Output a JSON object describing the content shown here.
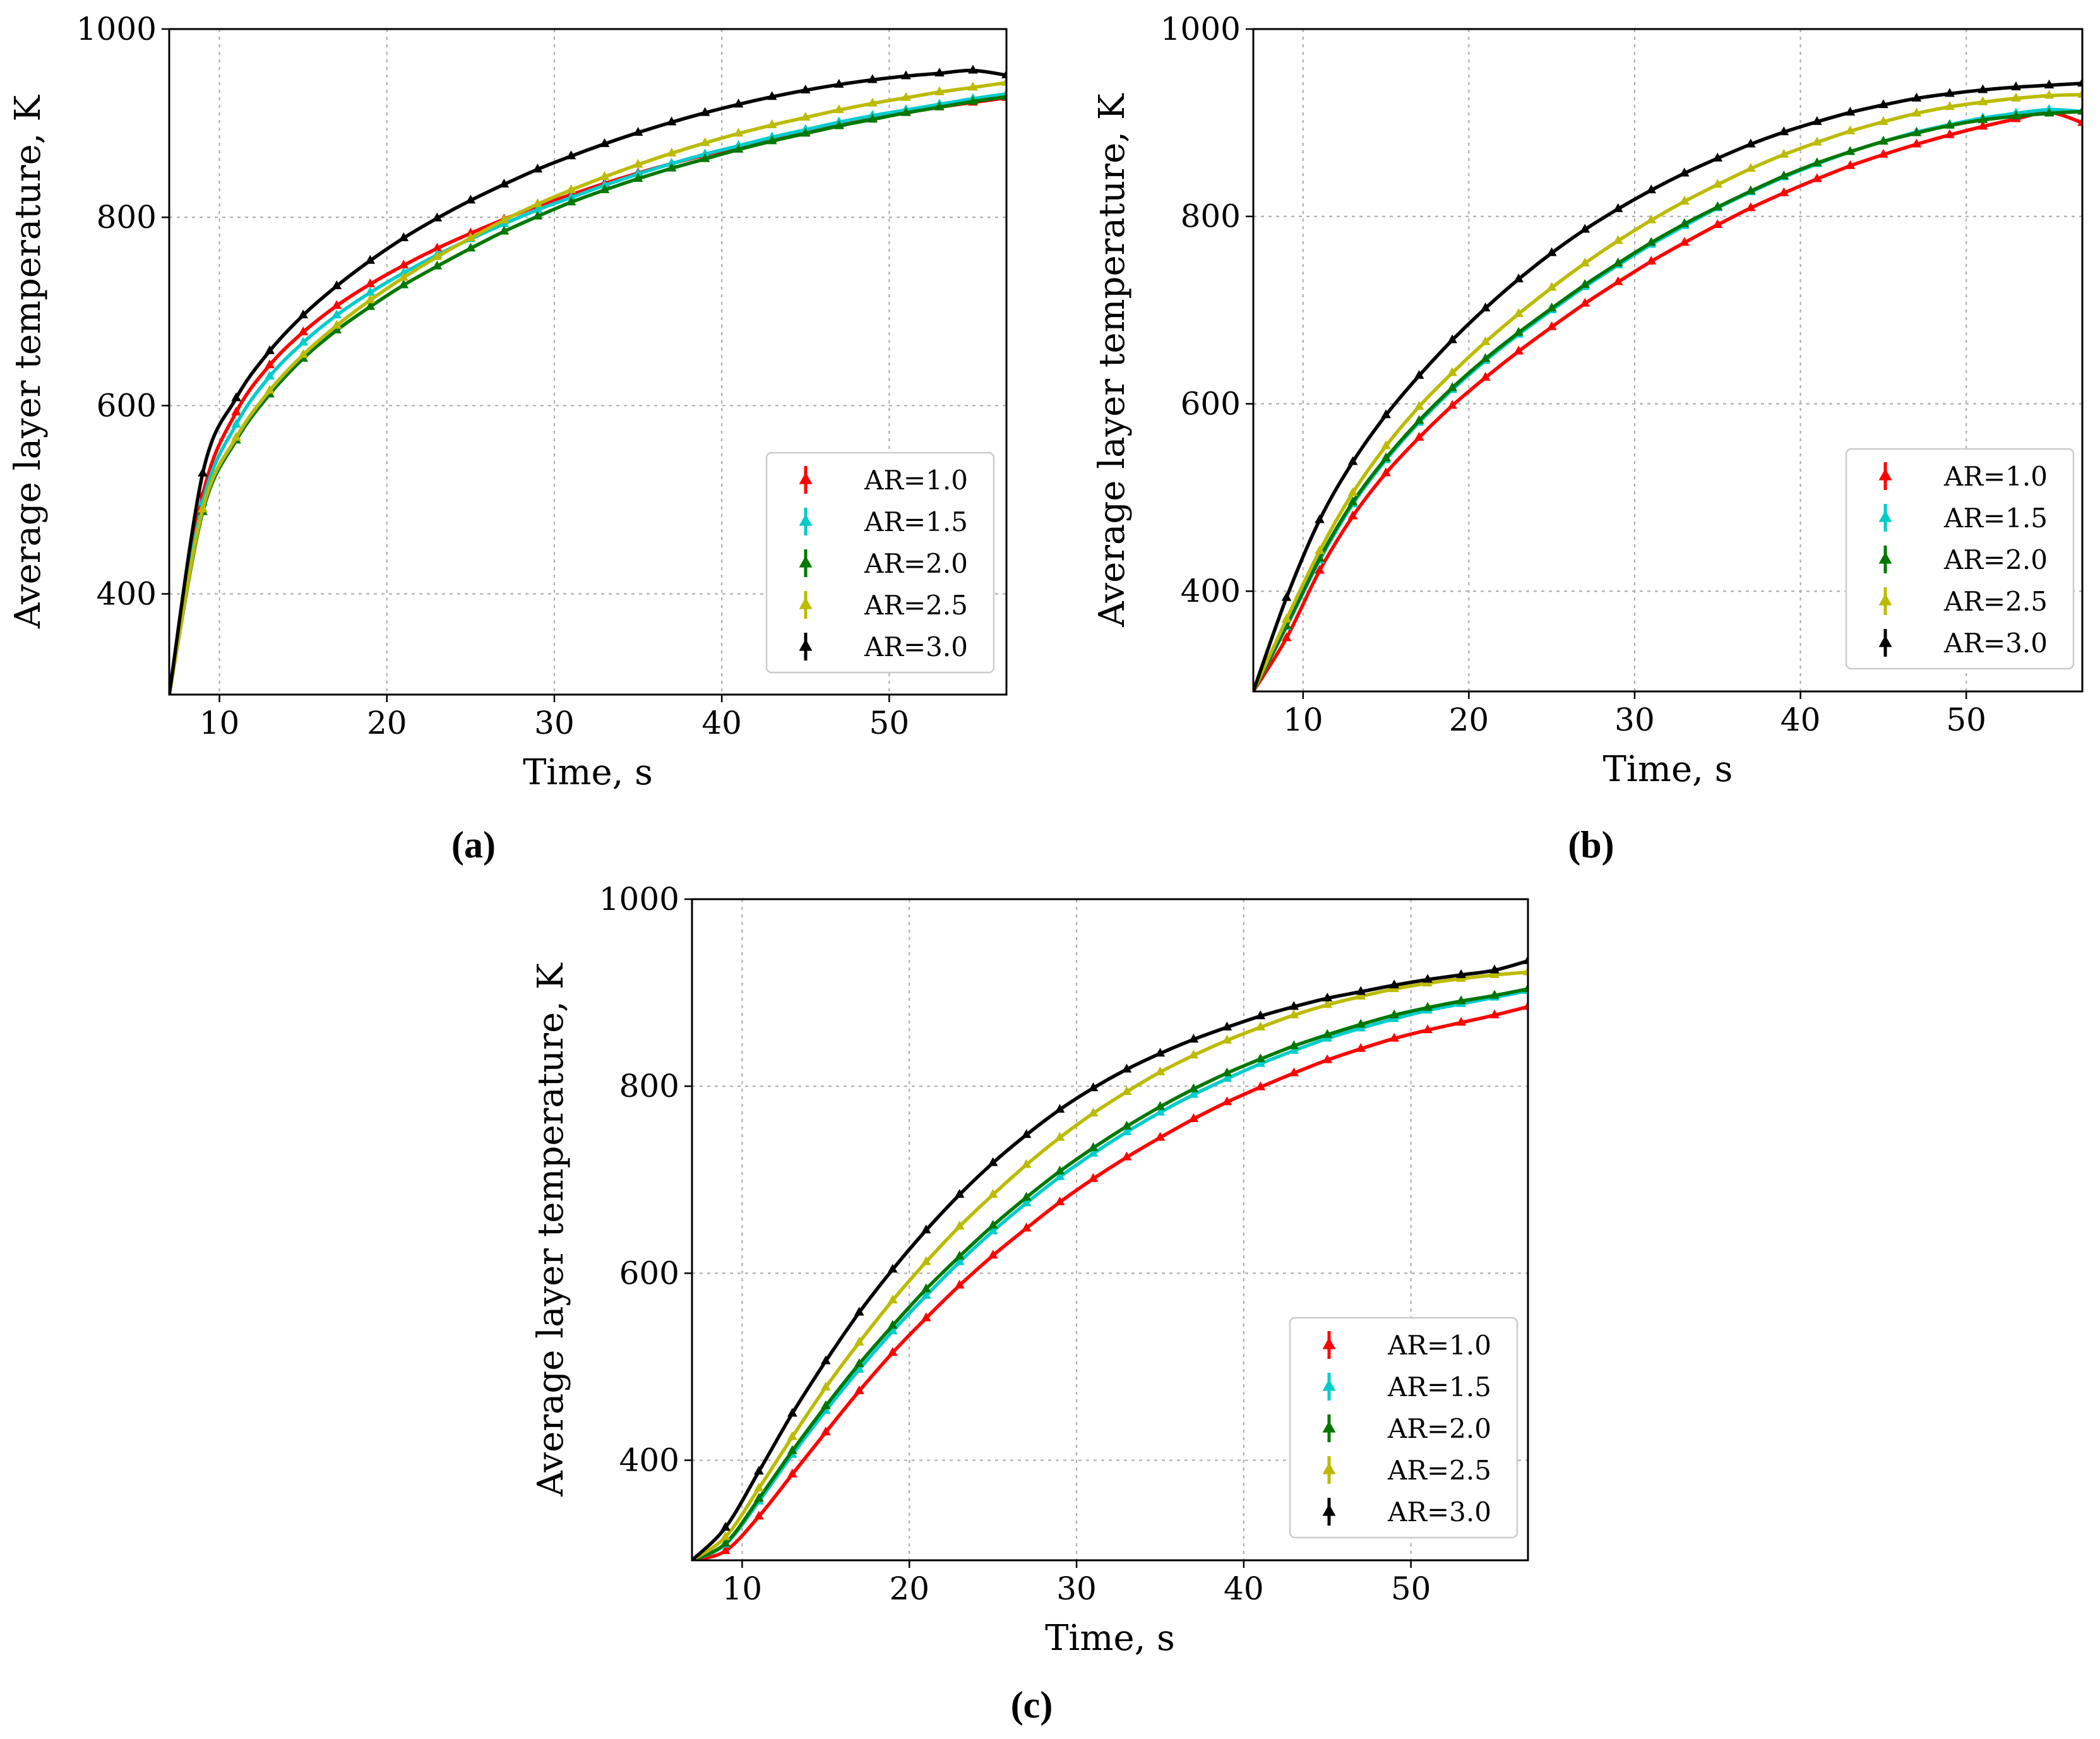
{
  "figure": {
    "labels": [
      "(a)",
      "(b)",
      "(c)"
    ]
  },
  "chart_data": [
    {
      "id": "a",
      "type": "line",
      "panel_label": "(a)",
      "xlabel": "Time, s",
      "ylabel": "Average layer temperature, K",
      "xlim": [
        7,
        57
      ],
      "ylim": [
        293,
        1000
      ],
      "xticks": [
        10,
        20,
        30,
        40,
        50
      ],
      "yticks": [
        400,
        600,
        800,
        1000
      ],
      "grid": true,
      "legend_position": "lower-right",
      "x": [
        7,
        9,
        11,
        13,
        15,
        17,
        19,
        21,
        23,
        25,
        27,
        29,
        31,
        33,
        35,
        37,
        39,
        41,
        43,
        45,
        47,
        49,
        51,
        53,
        55,
        57
      ],
      "series": [
        {
          "name": "AR=1.0",
          "color": "#ff0000",
          "values": [
            293,
            505,
            593,
            643,
            678,
            706,
            729,
            749,
            767,
            783,
            798,
            812,
            824,
            836,
            847,
            857,
            866,
            875,
            883,
            891,
            898,
            905,
            911,
            917,
            922,
            927
          ]
        },
        {
          "name": "AR=1.5",
          "color": "#00cccc",
          "values": [
            293,
            497,
            580,
            631,
            667,
            696,
            720,
            741,
            760,
            777,
            793,
            808,
            821,
            834,
            846,
            857,
            867,
            876,
            885,
            893,
            901,
            908,
            914,
            920,
            926,
            931
          ]
        },
        {
          "name": "AR=2.0",
          "color": "#007700",
          "values": [
            293,
            487,
            563,
            612,
            650,
            680,
            705,
            728,
            748,
            767,
            785,
            801,
            816,
            829,
            841,
            852,
            862,
            872,
            881,
            889,
            897,
            904,
            911,
            917,
            923,
            928
          ]
        },
        {
          "name": "AR=2.5",
          "color": "#bbbb00",
          "values": [
            293,
            490,
            566,
            616,
            654,
            685,
            712,
            736,
            758,
            778,
            797,
            814,
            829,
            843,
            856,
            868,
            879,
            889,
            898,
            906,
            914,
            921,
            927,
            933,
            938,
            943
          ]
        },
        {
          "name": "AR=3.0",
          "color": "#000000",
          "values": [
            293,
            528,
            608,
            658,
            696,
            727,
            754,
            778,
            799,
            818,
            835,
            851,
            865,
            878,
            890,
            901,
            911,
            920,
            928,
            935,
            941,
            946,
            950,
            953,
            956,
            951
          ]
        }
      ]
    },
    {
      "id": "b",
      "type": "line",
      "panel_label": "(b)",
      "xlabel": "Time, s",
      "ylabel": "Average layer temperature, K",
      "xlim": [
        7,
        57
      ],
      "ylim": [
        293,
        1000
      ],
      "xticks": [
        10,
        20,
        30,
        40,
        50
      ],
      "yticks": [
        400,
        600,
        800,
        1000
      ],
      "grid": true,
      "legend_position": "lower-right",
      "x": [
        7,
        9,
        11,
        13,
        15,
        17,
        19,
        21,
        23,
        25,
        27,
        29,
        31,
        33,
        35,
        37,
        39,
        41,
        43,
        45,
        47,
        49,
        51,
        53,
        55,
        57
      ],
      "series": [
        {
          "name": "AR=1.0",
          "color": "#ff0000",
          "values": [
            293,
            350,
            422,
            480,
            526,
            564,
            598,
            628,
            656,
            682,
            707,
            730,
            752,
            772,
            791,
            809,
            825,
            840,
            854,
            866,
            877,
            887,
            896,
            904,
            911,
            900
          ]
        },
        {
          "name": "AR=1.5",
          "color": "#00cccc",
          "values": [
            293,
            362,
            433,
            493,
            540,
            580,
            615,
            646,
            674,
            700,
            725,
            748,
            770,
            790,
            809,
            826,
            842,
            856,
            869,
            880,
            890,
            898,
            905,
            910,
            914,
            912
          ]
        },
        {
          "name": "AR=2.0",
          "color": "#007700",
          "values": [
            293,
            363,
            435,
            495,
            542,
            582,
            617,
            648,
            676,
            702,
            727,
            750,
            772,
            792,
            810,
            827,
            843,
            857,
            869,
            880,
            889,
            897,
            903,
            907,
            910,
            912
          ]
        },
        {
          "name": "AR=2.5",
          "color": "#bbbb00",
          "values": [
            293,
            370,
            443,
            505,
            555,
            597,
            633,
            666,
            696,
            724,
            750,
            774,
            796,
            816,
            834,
            851,
            866,
            879,
            891,
            901,
            910,
            917,
            922,
            926,
            929,
            930
          ]
        },
        {
          "name": "AR=3.0",
          "color": "#000000",
          "values": [
            293,
            393,
            476,
            538,
            588,
            630,
            668,
            702,
            733,
            761,
            786,
            808,
            828,
            846,
            862,
            877,
            890,
            901,
            911,
            919,
            926,
            931,
            935,
            938,
            940,
            942
          ]
        }
      ]
    },
    {
      "id": "c",
      "type": "line",
      "panel_label": "(c)",
      "xlabel": "Time, s",
      "ylabel": "Average layer temperature, K",
      "xlim": [
        7,
        57
      ],
      "ylim": [
        293,
        1000
      ],
      "xticks": [
        10,
        20,
        30,
        40,
        50
      ],
      "yticks": [
        400,
        600,
        800,
        1000
      ],
      "grid": true,
      "legend_position": "lower-right",
      "x": [
        7,
        9,
        11,
        13,
        15,
        17,
        19,
        21,
        23,
        25,
        27,
        29,
        31,
        33,
        35,
        37,
        39,
        41,
        43,
        45,
        47,
        49,
        51,
        53,
        55,
        57
      ],
      "series": [
        {
          "name": "AR=1.0",
          "color": "#ff0000",
          "values": [
            293,
            303,
            340,
            385,
            430,
            474,
            515,
            552,
            587,
            619,
            648,
            676,
            701,
            724,
            745,
            765,
            783,
            799,
            814,
            828,
            840,
            851,
            860,
            868,
            876,
            885
          ]
        },
        {
          "name": "AR=1.5",
          "color": "#00cccc",
          "values": [
            293,
            310,
            356,
            406,
            453,
            497,
            538,
            576,
            612,
            645,
            675,
            703,
            728,
            751,
            772,
            791,
            808,
            824,
            838,
            851,
            862,
            872,
            881,
            888,
            895,
            902
          ]
        },
        {
          "name": "AR=2.0",
          "color": "#007700",
          "values": [
            293,
            311,
            359,
            410,
            458,
            503,
            544,
            583,
            618,
            651,
            681,
            709,
            734,
            757,
            778,
            797,
            814,
            829,
            843,
            855,
            866,
            876,
            884,
            891,
            897,
            904
          ]
        },
        {
          "name": "AR=2.5",
          "color": "#bbbb00",
          "values": [
            293,
            318,
            370,
            425,
            478,
            526,
            571,
            612,
            650,
            684,
            716,
            745,
            771,
            794,
            815,
            833,
            849,
            863,
            876,
            887,
            896,
            904,
            910,
            915,
            919,
            922
          ]
        },
        {
          "name": "AR=3.0",
          "color": "#000000",
          "values": [
            293,
            328,
            388,
            450,
            506,
            558,
            604,
            646,
            684,
            718,
            748,
            775,
            798,
            818,
            835,
            850,
            863,
            875,
            885,
            894,
            901,
            908,
            914,
            919,
            924,
            934
          ]
        }
      ]
    }
  ]
}
